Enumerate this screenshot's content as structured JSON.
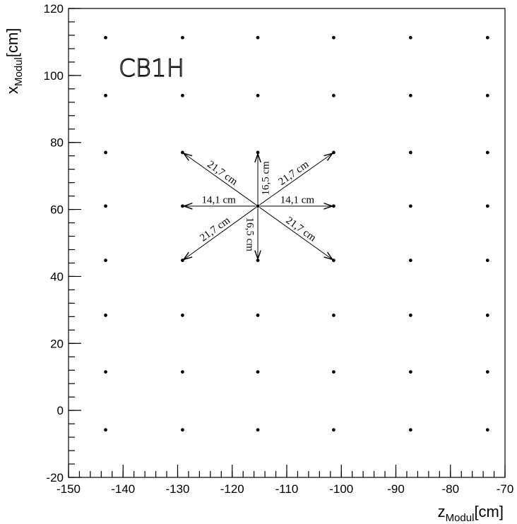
{
  "chart_data": {
    "type": "scatter",
    "title": "",
    "plot_label": "CB1H",
    "xlabel": {
      "main": "z",
      "sub": "Modul",
      "unit": "[cm]"
    },
    "ylabel": {
      "main": "x",
      "sub": "Modul",
      "unit": "[cm]"
    },
    "xlim": [
      -150,
      -70
    ],
    "ylim": [
      -20,
      120
    ],
    "x_ticks": [
      -150,
      -140,
      -130,
      -120,
      -110,
      -100,
      -90,
      -80,
      -70
    ],
    "y_ticks": [
      -20,
      0,
      20,
      40,
      60,
      80,
      100,
      120
    ],
    "x_minor_step": 2,
    "y_minor_step": 4,
    "grid": false,
    "grid_columns_z": [
      -143.2,
      -129.1,
      -115.3,
      -101.4,
      -87.3,
      -73.2
    ],
    "grid_rows_x": [
      -5.8,
      11.5,
      28.4,
      44.8,
      61.0,
      77.0,
      94.0,
      111.3
    ],
    "center": {
      "z": -115.3,
      "x": 61.0
    },
    "arrows": [
      {
        "to_z": -129.1,
        "to_x": 77.0,
        "label": "21,7 cm"
      },
      {
        "to_z": -115.3,
        "to_x": 77.0,
        "label": "16,5 cm"
      },
      {
        "to_z": -101.4,
        "to_x": 77.0,
        "label": "21,7 cm"
      },
      {
        "to_z": -129.1,
        "to_x": 61.0,
        "label": "14,1 cm"
      },
      {
        "to_z": -101.4,
        "to_x": 61.0,
        "label": "14,1 cm"
      },
      {
        "to_z": -129.1,
        "to_x": 44.8,
        "label": "21,7 cm"
      },
      {
        "to_z": -115.3,
        "to_x": 44.8,
        "label": "16,5 cm"
      },
      {
        "to_z": -101.4,
        "to_x": 44.8,
        "label": "21,7 cm"
      }
    ]
  }
}
